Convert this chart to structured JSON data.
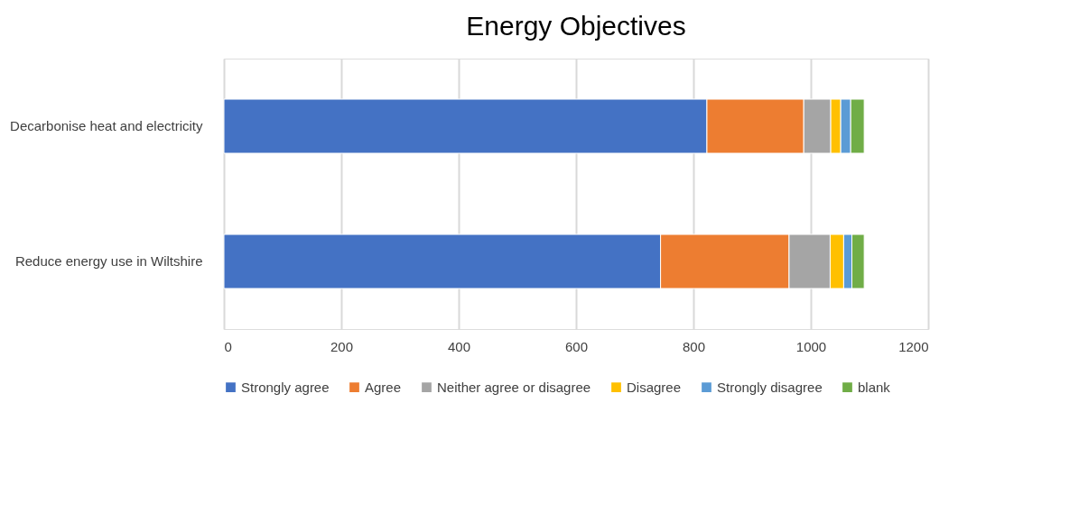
{
  "chart_data": {
    "type": "bar",
    "orientation": "horizontal",
    "stacked": true,
    "title": "Energy Objectives",
    "categories": [
      "Decarbonise heat and electricity",
      "Reduce energy use in Wiltshire"
    ],
    "series": [
      {
        "name": "Strongly agree",
        "color": "#4472c4",
        "values": [
          823,
          744
        ]
      },
      {
        "name": "Agree",
        "color": "#ed7d31",
        "values": [
          165,
          219
        ]
      },
      {
        "name": "Neither agree or disagree",
        "color": "#a5a5a5",
        "values": [
          46,
          70
        ]
      },
      {
        "name": "Disagree",
        "color": "#ffc000",
        "values": [
          17,
          23
        ]
      },
      {
        "name": "Strongly disagree",
        "color": "#5b9bd5",
        "values": [
          17,
          14
        ]
      },
      {
        "name": "blank",
        "color": "#70ad47",
        "values": [
          23,
          21
        ]
      }
    ],
    "xlim": [
      0,
      1200
    ],
    "xticks": [
      0,
      200,
      400,
      600,
      800,
      1000,
      1200
    ],
    "grid": "x",
    "legend": "bottom"
  }
}
